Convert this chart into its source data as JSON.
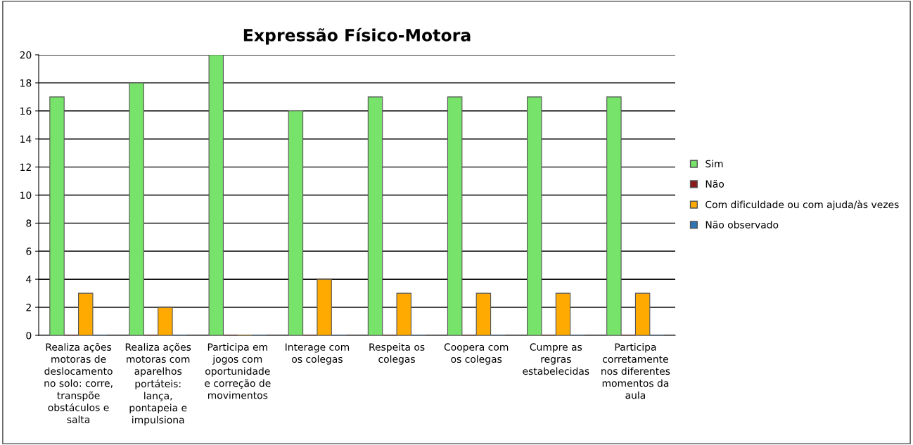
{
  "chart_data": {
    "type": "bar",
    "title": "Expressão Físico-Motora",
    "categories": [
      "Realiza ações\nmotoras de\ndeslocamento\nno solo: corre,\ntranspõe\nobstáculos e\nsalta",
      "Realiza ações\nmotoras com\naparelhos\nportáteis:\nlança,\npontapeia e\nimpulsiona",
      "Participa em\njogos com\noportunidade\ne correção de\nmovimentos",
      "Interage com\nos colegas",
      "Respeita os\ncolegas",
      "Coopera com\nos colegas",
      "Cumpre as\nregras\nestabelecidas",
      "Participa\ncorretamente\nnos diferentes\nmomentos da\naula"
    ],
    "series": [
      {
        "name": "Sim",
        "color": "#77e36a",
        "values": [
          17,
          18,
          20,
          16,
          17,
          17,
          17,
          17
        ]
      },
      {
        "name": "Não",
        "color": "#8b1a1a",
        "values": [
          0,
          0,
          0,
          0,
          0,
          0,
          0,
          0
        ]
      },
      {
        "name": "Com dificuldade ou com ajuda/às vezes",
        "color": "#ffaa00",
        "values": [
          3,
          2,
          0,
          4,
          3,
          3,
          3,
          3
        ]
      },
      {
        "name": "Não observado",
        "color": "#2e75b6",
        "values": [
          0,
          0,
          0,
          0,
          0,
          0,
          0,
          0
        ]
      }
    ],
    "ylim": [
      0,
      20
    ],
    "yticks": [
      0,
      2,
      4,
      6,
      8,
      10,
      12,
      14,
      16,
      18,
      20
    ],
    "grid": "y",
    "legend": "right"
  }
}
